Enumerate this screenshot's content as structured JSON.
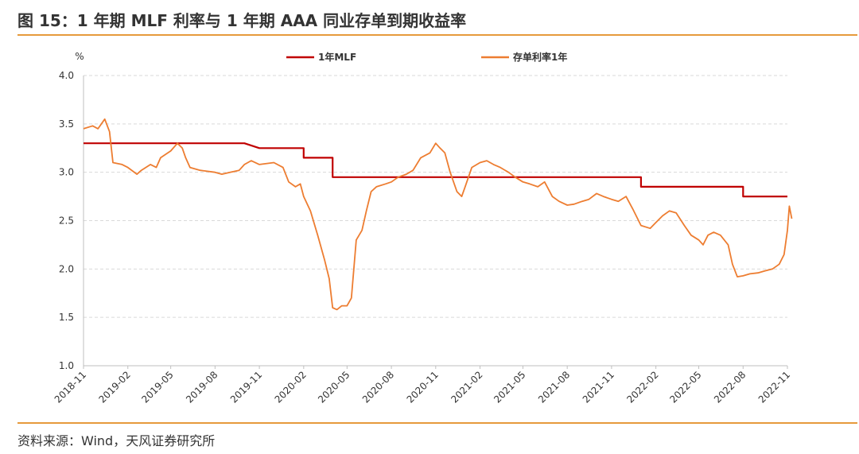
{
  "header": {
    "title": "图 15：1 年期 MLF 利率与 1 年期 AAA 同业存单到期收益率"
  },
  "footer": {
    "source": "资料来源：Wind，天风证券研究所"
  },
  "chart_data": {
    "type": "line",
    "title": "",
    "ylabel": "%",
    "xlabel": "",
    "ylim": [
      1.0,
      4.0
    ],
    "yticks": [
      "4.0",
      "3.5",
      "3.0",
      "2.5",
      "2.0",
      "1.5",
      "1.0"
    ],
    "x_tick_labels": [
      "2018-11",
      "2019-02",
      "2019-05",
      "2019-08",
      "2019-11",
      "2020-02",
      "2020-05",
      "2020-08",
      "2020-11",
      "2021-02",
      "2021-05",
      "2021-08",
      "2021-11",
      "2022-02",
      "2022-05",
      "2022-08",
      "2022-11"
    ],
    "x_range": [
      "2018-11",
      "2022-11"
    ],
    "grid": "horizontal dashed",
    "legend_position": "top",
    "series": [
      {
        "name": "1年MLF",
        "color": "#c00000",
        "step": true,
        "points": [
          [
            "2018-11",
            3.3
          ],
          [
            "2019-10",
            3.3
          ],
          [
            "2019-11",
            3.25
          ],
          [
            "2020-02",
            3.25
          ],
          [
            "2020-02",
            3.15
          ],
          [
            "2020-04",
            3.15
          ],
          [
            "2020-04",
            2.95
          ],
          [
            "2022-01",
            2.95
          ],
          [
            "2022-01",
            2.85
          ],
          [
            "2022-08",
            2.85
          ],
          [
            "2022-08",
            2.75
          ],
          [
            "2022-11",
            2.75
          ]
        ]
      },
      {
        "name": "存单利率1年",
        "color": "#ed7d31",
        "step": false,
        "points": [
          [
            "2018-11",
            3.45
          ],
          [
            "2018-11-20",
            3.48
          ],
          [
            "2018-12",
            3.45
          ],
          [
            "2018-12-15",
            3.55
          ],
          [
            "2018-12-25",
            3.42
          ],
          [
            "2019-01",
            3.1
          ],
          [
            "2019-01-20",
            3.08
          ],
          [
            "2019-02",
            3.05
          ],
          [
            "2019-02-20",
            2.98
          ],
          [
            "2019-03",
            3.02
          ],
          [
            "2019-03-20",
            3.08
          ],
          [
            "2019-04",
            3.05
          ],
          [
            "2019-04-10",
            3.15
          ],
          [
            "2019-04-25",
            3.2
          ],
          [
            "2019-05",
            3.22
          ],
          [
            "2019-05-15",
            3.3
          ],
          [
            "2019-05-25",
            3.25
          ],
          [
            "2019-06",
            3.15
          ],
          [
            "2019-06-10",
            3.05
          ],
          [
            "2019-07",
            3.02
          ],
          [
            "2019-08",
            3.0
          ],
          [
            "2019-08-15",
            2.98
          ],
          [
            "2019-09",
            3.0
          ],
          [
            "2019-09-20",
            3.02
          ],
          [
            "2019-10",
            3.08
          ],
          [
            "2019-10-15",
            3.12
          ],
          [
            "2019-11",
            3.08
          ],
          [
            "2019-12",
            3.1
          ],
          [
            "2019-12-20",
            3.05
          ],
          [
            "2020-01",
            2.9
          ],
          [
            "2020-01-15",
            2.85
          ],
          [
            "2020-01-25",
            2.88
          ],
          [
            "2020-02",
            2.75
          ],
          [
            "2020-02-15",
            2.6
          ],
          [
            "2020-03",
            2.35
          ],
          [
            "2020-03-15",
            2.1
          ],
          [
            "2020-03-25",
            1.9
          ],
          [
            "2020-04",
            1.6
          ],
          [
            "2020-04-10",
            1.58
          ],
          [
            "2020-04-20",
            1.62
          ],
          [
            "2020-05",
            1.62
          ],
          [
            "2020-05-10",
            1.7
          ],
          [
            "2020-05-20",
            2.3
          ],
          [
            "2020-06",
            2.4
          ],
          [
            "2020-06-10",
            2.6
          ],
          [
            "2020-06-20",
            2.8
          ],
          [
            "2020-07",
            2.85
          ],
          [
            "2020-07-20",
            2.88
          ],
          [
            "2020-08",
            2.9
          ],
          [
            "2020-08-15",
            2.95
          ],
          [
            "2020-09",
            2.98
          ],
          [
            "2020-09-15",
            3.02
          ],
          [
            "2020-10",
            3.15
          ],
          [
            "2020-10-20",
            3.2
          ],
          [
            "2020-11",
            3.3
          ],
          [
            "2020-11-10",
            3.25
          ],
          [
            "2020-11-20",
            3.2
          ],
          [
            "2020-12",
            3.0
          ],
          [
            "2020-12-15",
            2.8
          ],
          [
            "2020-12-25",
            2.75
          ],
          [
            "2021-01",
            2.85
          ],
          [
            "2021-01-15",
            3.05
          ],
          [
            "2021-02",
            3.1
          ],
          [
            "2021-02-15",
            3.12
          ],
          [
            "2021-03",
            3.08
          ],
          [
            "2021-03-15",
            3.05
          ],
          [
            "2021-04",
            3.0
          ],
          [
            "2021-04-15",
            2.95
          ],
          [
            "2021-05",
            2.9
          ],
          [
            "2021-05-15",
            2.88
          ],
          [
            "2021-06",
            2.85
          ],
          [
            "2021-06-15",
            2.9
          ],
          [
            "2021-07",
            2.75
          ],
          [
            "2021-07-15",
            2.7
          ],
          [
            "2021-08",
            2.66
          ],
          [
            "2021-08-15",
            2.67
          ],
          [
            "2021-09",
            2.7
          ],
          [
            "2021-09-15",
            2.72
          ],
          [
            "2021-10",
            2.78
          ],
          [
            "2021-10-15",
            2.75
          ],
          [
            "2021-11",
            2.72
          ],
          [
            "2021-11-15",
            2.7
          ],
          [
            "2021-12",
            2.75
          ],
          [
            "2021-12-15",
            2.62
          ],
          [
            "2022-01",
            2.45
          ],
          [
            "2022-01-20",
            2.42
          ],
          [
            "2022-02",
            2.48
          ],
          [
            "2022-02-15",
            2.55
          ],
          [
            "2022-03",
            2.6
          ],
          [
            "2022-03-15",
            2.58
          ],
          [
            "2022-04",
            2.45
          ],
          [
            "2022-04-15",
            2.35
          ],
          [
            "2022-05",
            2.3
          ],
          [
            "2022-05-10",
            2.25
          ],
          [
            "2022-05-20",
            2.35
          ],
          [
            "2022-06",
            2.38
          ],
          [
            "2022-06-15",
            2.35
          ],
          [
            "2022-07",
            2.25
          ],
          [
            "2022-07-10",
            2.05
          ],
          [
            "2022-07-20",
            1.92
          ],
          [
            "2022-08",
            1.93
          ],
          [
            "2022-08-15",
            1.95
          ],
          [
            "2022-09",
            1.96
          ],
          [
            "2022-09-15",
            1.98
          ],
          [
            "2022-10",
            2.0
          ],
          [
            "2022-10-15",
            2.05
          ],
          [
            "2022-10-25",
            2.15
          ],
          [
            "2022-11",
            2.4
          ],
          [
            "2022-11-05",
            2.65
          ],
          [
            "2022-11-10",
            2.52
          ]
        ]
      }
    ]
  }
}
